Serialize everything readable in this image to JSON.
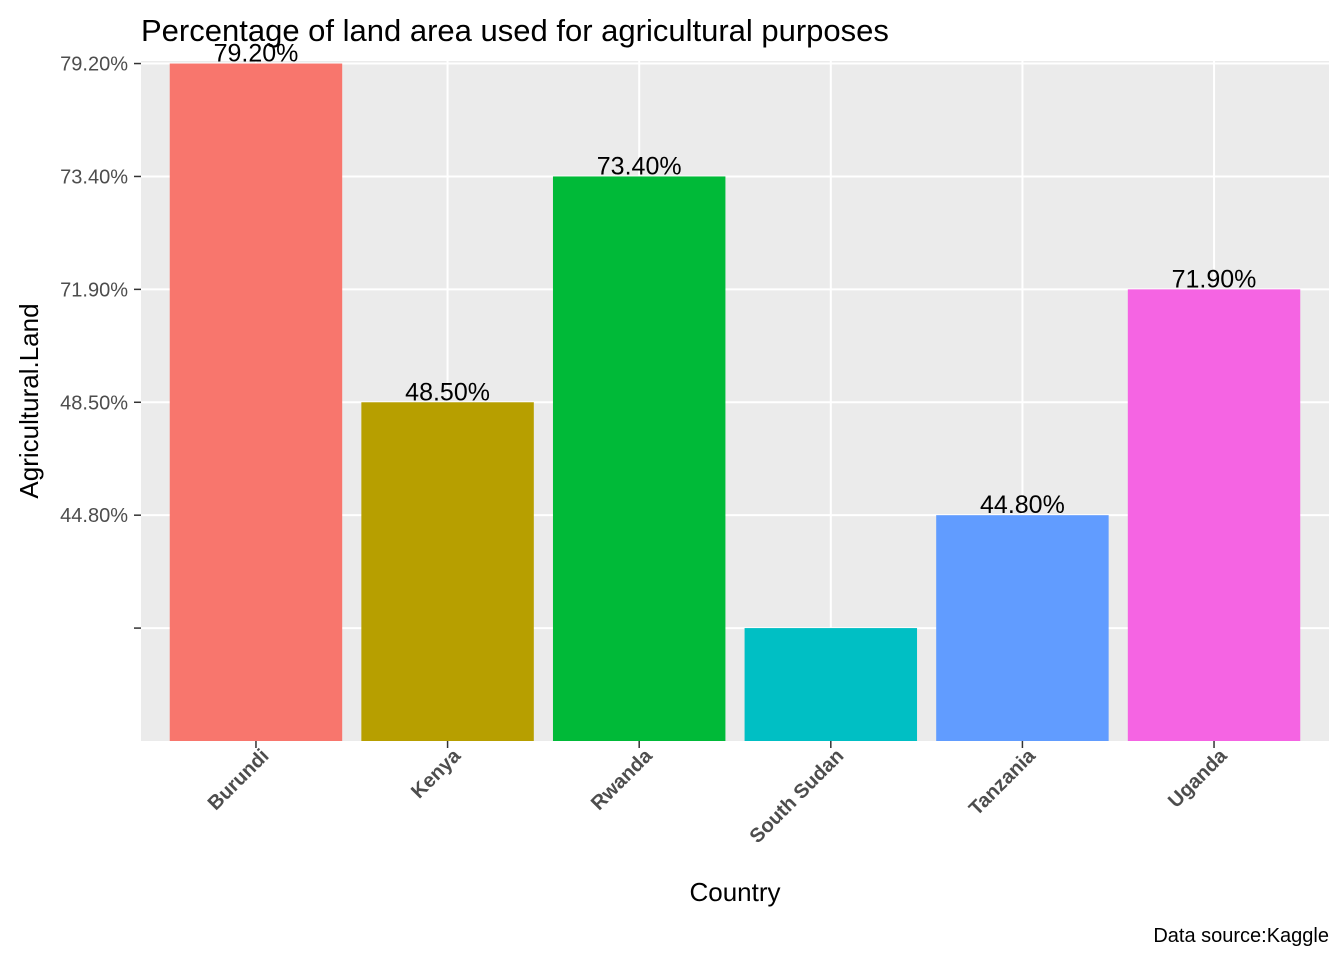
{
  "chart_data": {
    "type": "bar",
    "title": "Percentage of land area used for agricultural purposes",
    "xlabel": "Country",
    "ylabel": "Agricultural.Land",
    "caption": "Data source:Kaggle",
    "y_axis_scale": "discrete (categories ordered by level, not by magnitude)",
    "y_levels": [
      "",
      "44.80%",
      "48.50%",
      "71.90%",
      "73.40%",
      "79.20%"
    ],
    "categories": [
      "Burundi",
      "Kenya",
      "Rwanda",
      "South Sudan",
      "Tanzania",
      "Uganda"
    ],
    "values": [
      "79.20%",
      "48.50%",
      "73.40%",
      "",
      "44.80%",
      "71.90%"
    ],
    "value_labels": [
      "79.20%",
      "48.50%",
      "73.40%",
      "",
      "44.80%",
      "71.90%"
    ],
    "colors": [
      "#F8766D",
      "#B79F00",
      "#00BA38",
      "#00BFC4",
      "#619CFF",
      "#F564E3"
    ],
    "background": "#EBEBEB",
    "grid": true,
    "legend": "none"
  }
}
